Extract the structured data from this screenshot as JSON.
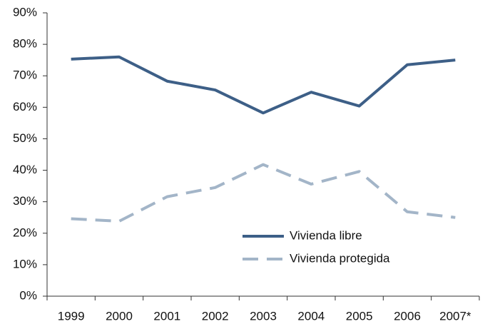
{
  "chart_data": {
    "type": "line",
    "categories": [
      "1999",
      "2000",
      "2001",
      "2002",
      "2003",
      "2004",
      "2005",
      "2006",
      "2007*"
    ],
    "series": [
      {
        "name": "Vivienda libre",
        "color": "#3d5f87",
        "values": [
          75.3,
          76,
          68.3,
          65.5,
          58.2,
          64.8,
          60.4,
          73.5,
          75
        ]
      },
      {
        "name": "Vivienda protegida",
        "color": "#a3b5c8",
        "dashed": true,
        "values": [
          24.6,
          23.8,
          31.6,
          34.5,
          41.8,
          35.6,
          39.6,
          26.8,
          25
        ]
      }
    ],
    "ylim": [
      0,
      90
    ],
    "yticks": [
      {
        "value": 0,
        "label": "0%"
      },
      {
        "value": 10,
        "label": "10%"
      },
      {
        "value": 20,
        "label": "20%"
      },
      {
        "value": 30,
        "label": "30%"
      },
      {
        "value": 40,
        "label": "40%"
      },
      {
        "value": 50,
        "label": "50%"
      },
      {
        "value": 60,
        "label": "60%"
      },
      {
        "value": 70,
        "label": "70%"
      },
      {
        "value": 80,
        "label": "80%"
      },
      {
        "value": 90,
        "label": "90%"
      }
    ],
    "grid": false
  }
}
